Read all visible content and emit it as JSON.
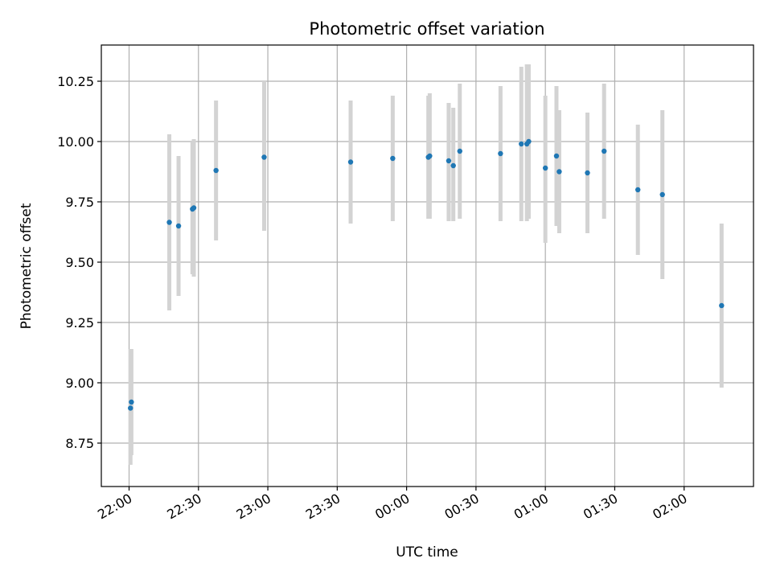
{
  "chart_data": {
    "type": "scatter",
    "title": "Photometric offset variation",
    "xlabel": "UTC time",
    "ylabel": "Photometric offset",
    "x_axis_kind": "time",
    "xlim_minutes_from_2200": [
      -6,
      135
    ],
    "ylim": [
      8.57,
      10.4
    ],
    "grid": true,
    "point_color": "#1f77b4",
    "errorbar_color": "#d3d3d3",
    "x_ticks": [
      {
        "label": "22:00",
        "value": 0
      },
      {
        "label": "22:30",
        "value": 15
      },
      {
        "label": "23:00",
        "value": 30
      },
      {
        "label": "23:30",
        "value": 45
      },
      {
        "label": "00:00",
        "value": 60
      },
      {
        "label": "00:30",
        "value": 75
      },
      {
        "label": "01:00",
        "value": 90
      },
      {
        "label": "01:30",
        "value": 105
      },
      {
        "label": "02:00",
        "value": 120
      }
    ],
    "y_ticks": [
      {
        "label": "8.75",
        "value": 8.75
      },
      {
        "label": "9.00",
        "value": 9.0
      },
      {
        "label": "9.25",
        "value": 9.25
      },
      {
        "label": "9.50",
        "value": 9.5
      },
      {
        "label": "9.75",
        "value": 9.75
      },
      {
        "label": "10.00",
        "value": 10.0
      },
      {
        "label": "10.25",
        "value": 10.25
      }
    ],
    "points": [
      {
        "x": 0.3,
        "y": 8.895,
        "lo": 8.66,
        "hi": 9.14
      },
      {
        "x": 0.5,
        "y": 8.92,
        "lo": 8.7,
        "hi": 9.14
      },
      {
        "x": 8.7,
        "y": 9.665,
        "lo": 9.3,
        "hi": 10.03
      },
      {
        "x": 10.7,
        "y": 9.65,
        "lo": 9.36,
        "hi": 9.94
      },
      {
        "x": 13.7,
        "y": 9.72,
        "lo": 9.45,
        "hi": 10.0
      },
      {
        "x": 14.0,
        "y": 9.725,
        "lo": 9.44,
        "hi": 10.01
      },
      {
        "x": 18.8,
        "y": 9.88,
        "lo": 9.59,
        "hi": 10.17
      },
      {
        "x": 29.2,
        "y": 9.935,
        "lo": 9.63,
        "hi": 10.25
      },
      {
        "x": 47.9,
        "y": 9.915,
        "lo": 9.66,
        "hi": 10.17
      },
      {
        "x": 57.0,
        "y": 9.93,
        "lo": 9.67,
        "hi": 10.19
      },
      {
        "x": 64.7,
        "y": 9.935,
        "lo": 9.68,
        "hi": 10.19
      },
      {
        "x": 65.0,
        "y": 9.94,
        "lo": 9.68,
        "hi": 10.2
      },
      {
        "x": 69.1,
        "y": 9.92,
        "lo": 9.67,
        "hi": 10.16
      },
      {
        "x": 70.1,
        "y": 9.9,
        "lo": 9.67,
        "hi": 10.14
      },
      {
        "x": 71.5,
        "y": 9.96,
        "lo": 9.68,
        "hi": 10.24
      },
      {
        "x": 80.3,
        "y": 9.95,
        "lo": 9.67,
        "hi": 10.23
      },
      {
        "x": 84.8,
        "y": 9.99,
        "lo": 9.67,
        "hi": 10.31
      },
      {
        "x": 86.0,
        "y": 9.99,
        "lo": 9.67,
        "hi": 10.32
      },
      {
        "x": 86.4,
        "y": 10.0,
        "lo": 9.68,
        "hi": 10.32
      },
      {
        "x": 90.0,
        "y": 9.89,
        "lo": 9.58,
        "hi": 10.19
      },
      {
        "x": 92.4,
        "y": 9.94,
        "lo": 9.65,
        "hi": 10.23
      },
      {
        "x": 93.0,
        "y": 9.875,
        "lo": 9.62,
        "hi": 10.13
      },
      {
        "x": 99.1,
        "y": 9.87,
        "lo": 9.62,
        "hi": 10.12
      },
      {
        "x": 102.7,
        "y": 9.96,
        "lo": 9.68,
        "hi": 10.24
      },
      {
        "x": 110.0,
        "y": 9.8,
        "lo": 9.53,
        "hi": 10.07
      },
      {
        "x": 115.3,
        "y": 9.78,
        "lo": 9.43,
        "hi": 10.13
      },
      {
        "x": 128.1,
        "y": 9.32,
        "lo": 8.98,
        "hi": 9.66
      }
    ]
  }
}
